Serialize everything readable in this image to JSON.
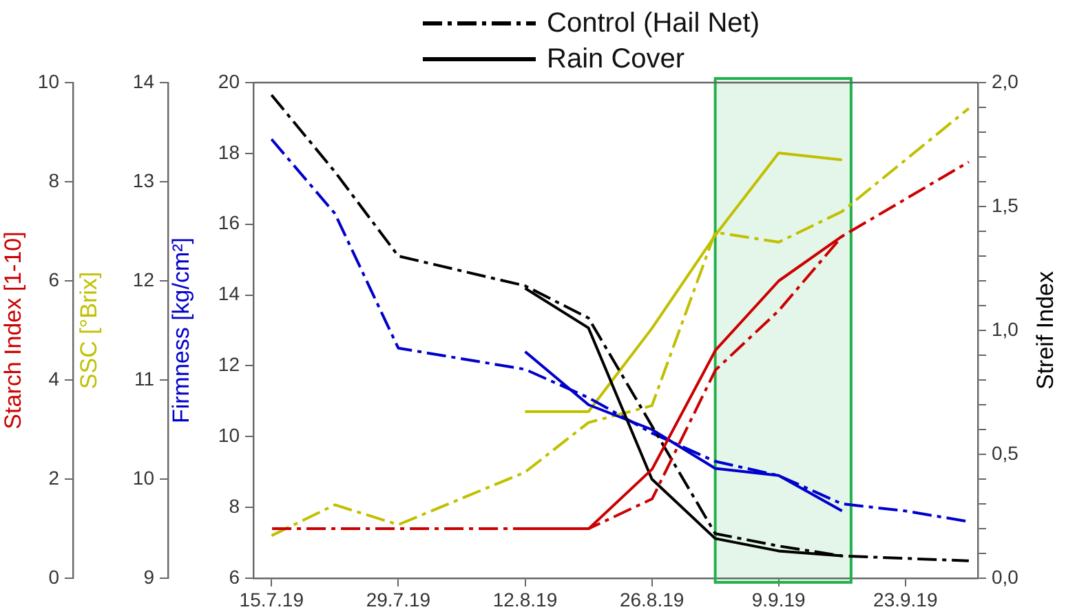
{
  "chart_data": [
    {
      "type": "line",
      "xlim": [
        "--07-13",
        "--10-01"
      ],
      "xticks": [
        {
          "value": "--07-15",
          "label": "15.7.19"
        },
        {
          "value": "--07-29",
          "label": "29.7.19"
        },
        {
          "value": "--08-12",
          "label": "12.8.19"
        },
        {
          "value": "--08-26",
          "label": "26.8.19"
        },
        {
          "value": "--09-09",
          "label": "9.9.19"
        },
        {
          "value": "--09-23",
          "label": "23.9.19"
        }
      ],
      "ylabel": "Firmness [kg/cm²]",
      "ylim": [
        6,
        20
      ],
      "yticks": [
        6,
        8,
        10,
        12,
        14,
        16,
        18,
        20
      ],
      "y2label": "Streif Index",
      "y2lim": [
        0,
        2
      ],
      "y2ticks": [
        {
          "value": 0,
          "label": "0,0"
        },
        {
          "value": 0.1,
          "label": null
        },
        {
          "value": 0.2,
          "label": null
        },
        {
          "value": 0.3,
          "label": null
        },
        {
          "value": 0.4,
          "label": null
        },
        {
          "value": 0.5,
          "label": "0,5"
        },
        {
          "value": 0.6,
          "label": null
        },
        {
          "value": 0.7,
          "label": null
        },
        {
          "value": 0.8,
          "label": null
        },
        {
          "value": 0.9,
          "label": null
        },
        {
          "value": 1,
          "label": "1,0"
        },
        {
          "value": 1.1,
          "label": null
        },
        {
          "value": 1.2,
          "label": null
        },
        {
          "value": 1.3,
          "label": null
        },
        {
          "value": 1.4,
          "label": null
        },
        {
          "value": 1.5,
          "label": "1,5"
        },
        {
          "value": 1.6,
          "label": null
        },
        {
          "value": 1.7,
          "label": null
        },
        {
          "value": 1.8,
          "label": null
        },
        {
          "value": 1.9,
          "label": null
        },
        {
          "value": 2,
          "label": "2,0"
        }
      ],
      "y3label": "SSC [°Brix]",
      "y3lim": [
        9,
        14
      ],
      "y3ticks": [
        9,
        10,
        11,
        12,
        13,
        14
      ],
      "grid": false,
      "legend": "top",
      "marker": "none",
      "bands": [
        {
          "axis": "x",
          "from": "--09-02",
          "to": "--09-17",
          "color": "#22b14c"
        }
      ],
      "series": [
        {
          "name": "Control (Hail Net)",
          "color": "#000000",
          "axis": "y2",
          "line_style": "dashdot",
          "x": [
            "--07-15",
            "--07-22",
            "--07-29",
            "--08-12",
            "--08-19",
            "--09-02",
            "--09-09",
            "--09-16",
            "--09-23",
            "--09-30"
          ],
          "values": [
            1.95,
            1.64,
            1.3,
            1.18,
            1.05,
            0.18,
            0.13,
            0.09,
            0.08,
            0.07
          ]
        },
        {
          "name": "Rain Cover",
          "color": "#000000",
          "axis": "y2",
          "line_style": "solid",
          "x": [
            "--08-12",
            "--08-19",
            "--08-26",
            "--09-02",
            "--09-09",
            "--09-16"
          ],
          "values": [
            1.17,
            1.01,
            0.4,
            0.16,
            0.11,
            0.09
          ]
        },
        {
          "color": "#0000cc",
          "axis": "y",
          "line_style": "dashdot",
          "x": [
            "--07-15",
            "--07-22",
            "--07-29",
            "--08-12",
            "--08-19",
            "--08-26",
            "--09-02",
            "--09-09",
            "--09-16",
            "--09-23",
            "--09-30"
          ],
          "values": [
            18.4,
            16.3,
            12.5,
            11.9,
            11.1,
            10.1,
            9.3,
            8.9,
            8.1,
            7.9,
            7.6
          ]
        },
        {
          "color": "#0000cc",
          "axis": "y",
          "line_style": "solid",
          "x": [
            "--08-12",
            "--08-19",
            "--08-26",
            "--09-02",
            "--09-09",
            "--09-16"
          ],
          "values": [
            12.4,
            10.9,
            10.2,
            9.1,
            8.9,
            7.9
          ]
        },
        {
          "color": "#c0c000",
          "axis": "y3",
          "line_style": "dashdot",
          "x": [
            "--07-15",
            "--07-22",
            "--07-29",
            "--08-12",
            "--08-19",
            "--08-26",
            "--09-02",
            "--09-09",
            "--09-16",
            "--09-30"
          ],
          "values": [
            9.43,
            9.74,
            9.54,
            10.07,
            10.57,
            10.74,
            12.49,
            12.39,
            12.7,
            13.74
          ]
        },
        {
          "color": "#c0c000",
          "axis": "y3",
          "line_style": "solid",
          "x": [
            "--08-12",
            "--08-19",
            "--08-26",
            "--09-02",
            "--09-09",
            "--09-16"
          ],
          "values": [
            10.68,
            10.68,
            11.52,
            12.46,
            13.29,
            13.22
          ]
        }
      ]
    },
    {
      "type": "line",
      "xlim": [
        "--06-23",
        "--10-01"
      ],
      "xticks": [
        {
          "value": "--07-15",
          "label": "15.7.19"
        },
        {
          "value": "--07-29",
          "label": "29.7.19"
        },
        {
          "value": "--08-12",
          "label": "12.8.19"
        },
        {
          "value": "--08-26",
          "label": "26.8.19"
        },
        {
          "value": "--09-09",
          "label": "9.9.19"
        },
        {
          "value": "--09-23",
          "label": "23.9.19"
        }
      ],
      "ylabel": "Starch Index [1-10]",
      "ylim": [
        0,
        10
      ],
      "yticks": [
        0,
        2,
        4,
        6,
        8,
        10
      ],
      "tick_labels": "y",
      "grid": false,
      "marker": "none",
      "series": [
        {
          "color": "#cc0000",
          "line_style": "dashdot",
          "x": [
            "--07-15",
            "--07-22",
            "--07-29",
            "--08-12",
            "--08-19",
            "--08-26",
            "--09-02",
            "--09-09",
            "--09-16",
            "--09-30"
          ],
          "values": [
            1,
            1,
            1,
            1,
            1,
            1.6,
            4.2,
            5.4,
            6.9,
            8.4
          ]
        },
        {
          "color": "#cc0000",
          "line_style": "solid",
          "x": [
            "--08-12",
            "--08-19",
            "--08-26",
            "--09-02",
            "--09-09",
            "--09-16"
          ],
          "values": [
            1,
            1,
            2.2,
            4.6,
            6,
            6.9
          ]
        }
      ]
    }
  ]
}
